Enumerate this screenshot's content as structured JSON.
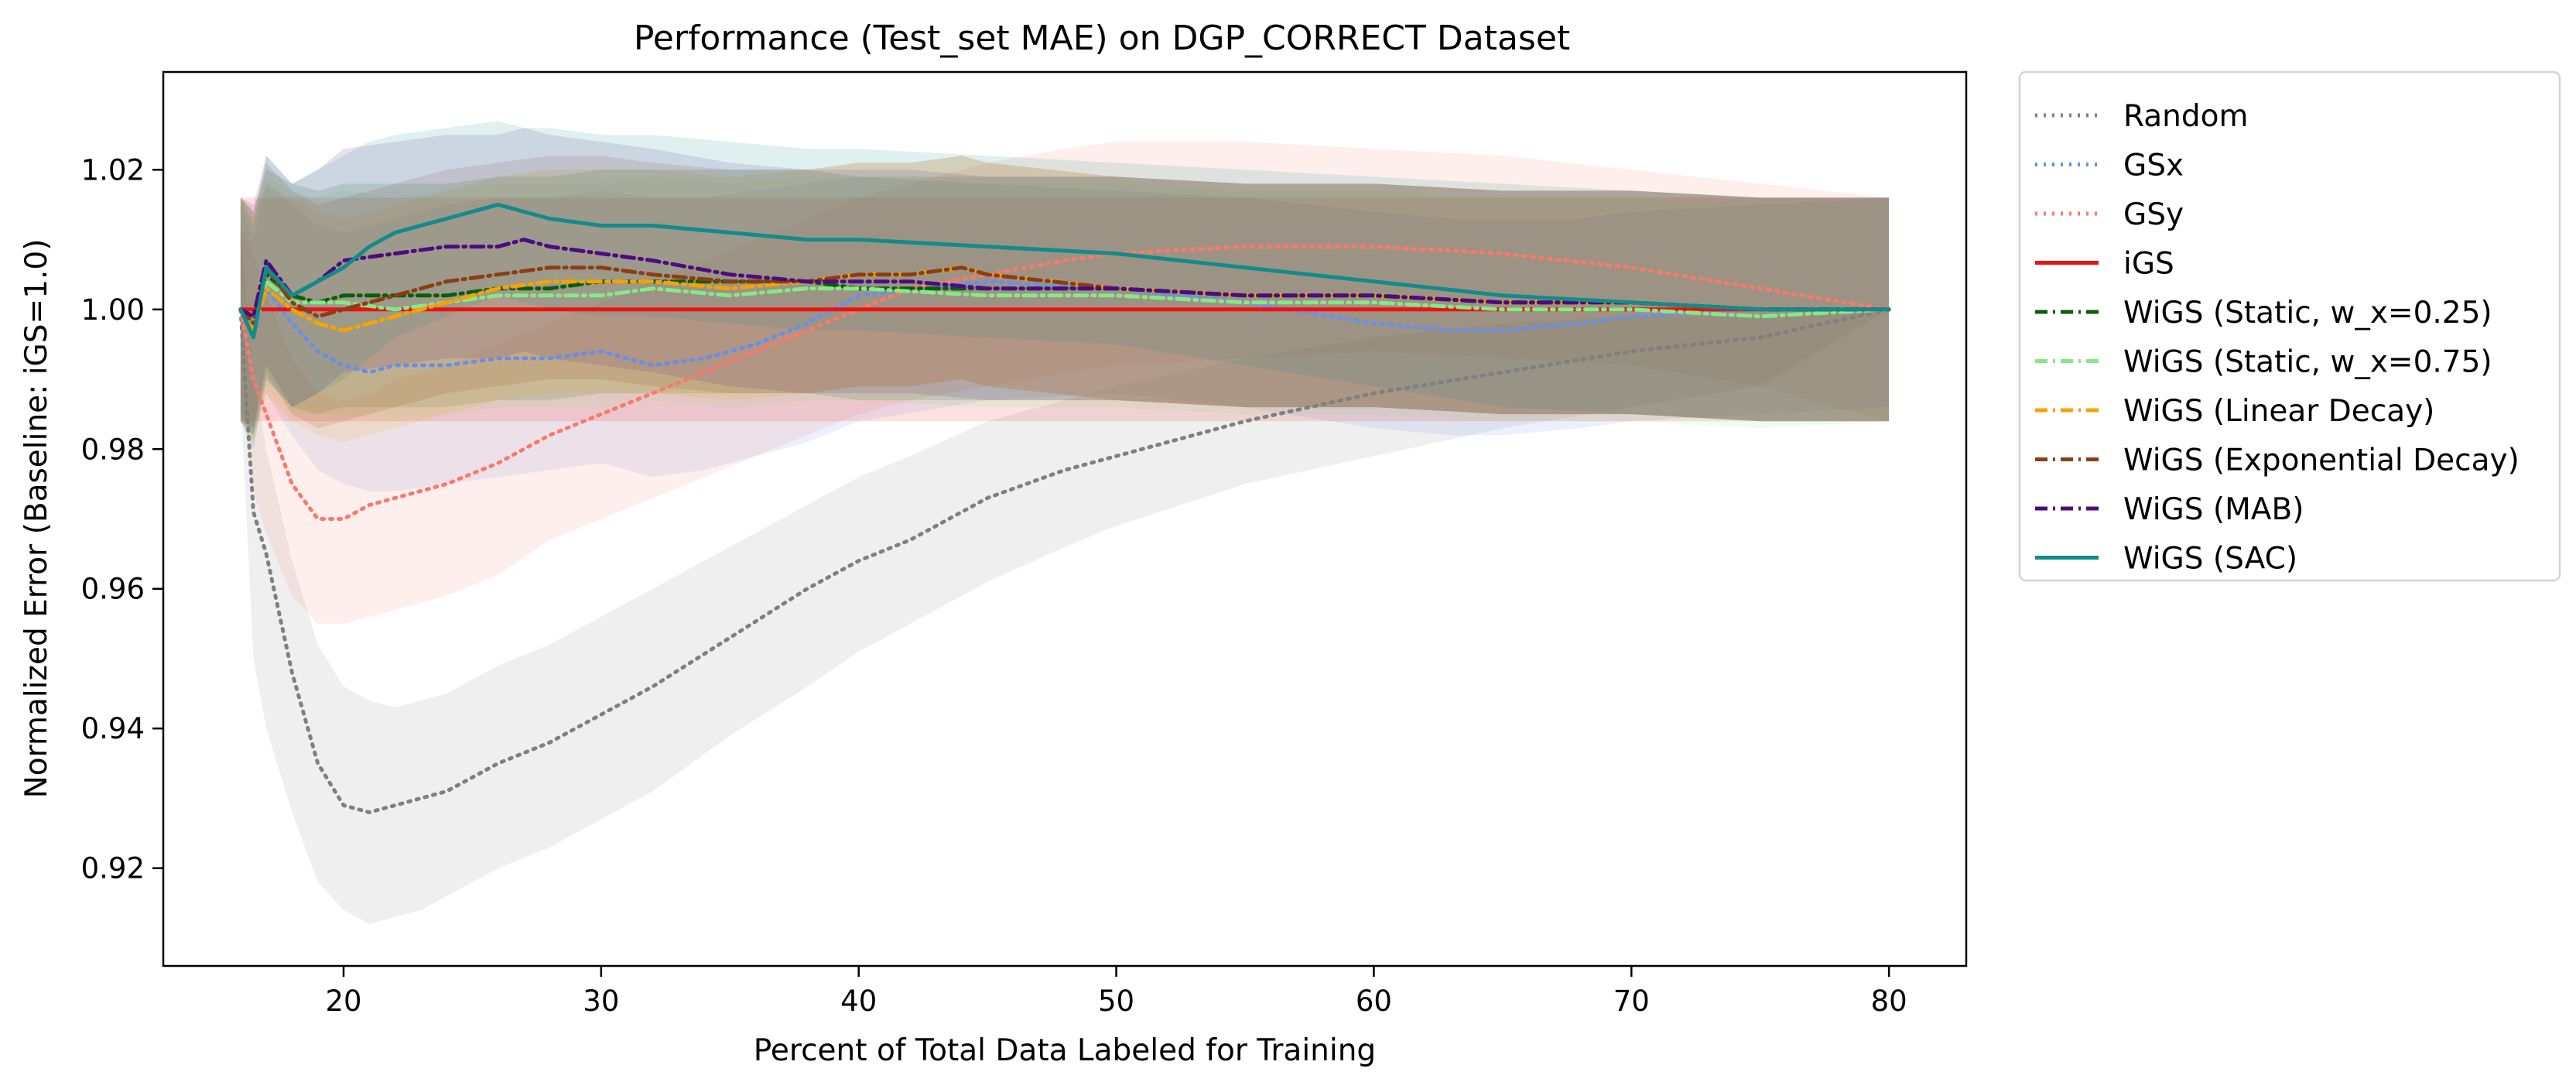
{
  "chart_data": {
    "type": "line",
    "title": "Performance (Test_set MAE) on DGP_CORRECT Dataset",
    "xlabel": "Percent of Total Data Labeled for Training",
    "ylabel": "Normalized Error (Baseline: iGS=1.0)",
    "xlim": [
      13,
      83
    ],
    "ylim": [
      0.906,
      1.034
    ],
    "xticks": [
      20,
      30,
      40,
      50,
      60,
      70,
      80
    ],
    "yticks": [
      0.92,
      0.94,
      0.96,
      0.98,
      1.0,
      1.02
    ],
    "ytick_labels": [
      "0.92",
      "0.94",
      "0.96",
      "0.98",
      "1.00",
      "1.02"
    ],
    "grid": false,
    "legend_position": "outside-right",
    "series": [
      {
        "name": "Random",
        "color": "#808080",
        "dash": "dotted",
        "x": [
          16,
          16.5,
          17,
          18,
          19,
          20,
          21,
          22,
          23,
          24,
          25,
          26,
          28,
          30,
          32,
          35,
          38,
          40,
          42,
          45,
          48,
          50,
          55,
          60,
          65,
          70,
          75,
          80
        ],
        "y": [
          1.0,
          0.971,
          0.965,
          0.948,
          0.935,
          0.929,
          0.928,
          0.929,
          0.93,
          0.931,
          0.933,
          0.935,
          0.938,
          0.942,
          0.946,
          0.953,
          0.96,
          0.964,
          0.967,
          0.973,
          0.977,
          0.979,
          0.984,
          0.988,
          0.991,
          0.994,
          0.996,
          1.0
        ],
        "band": [
          [
            1.012,
            0.99,
            0.98,
            0.964,
            0.952,
            0.946,
            0.944,
            0.943,
            0.944,
            0.945,
            0.947,
            0.949,
            0.952,
            0.956,
            0.96,
            0.966,
            0.972,
            0.976,
            0.979,
            0.984,
            0.987,
            0.989,
            0.993,
            0.996,
            0.998,
            0.999,
            0.999,
            1.0
          ],
          [
            0.988,
            0.95,
            0.94,
            0.928,
            0.918,
            0.914,
            0.912,
            0.913,
            0.914,
            0.916,
            0.918,
            0.92,
            0.923,
            0.927,
            0.931,
            0.939,
            0.946,
            0.951,
            0.955,
            0.961,
            0.966,
            0.969,
            0.975,
            0.979,
            0.983,
            0.986,
            0.989,
            1.0
          ]
        ]
      },
      {
        "name": "GSx",
        "color": "#6a8ee8",
        "dash": "dotted",
        "x": [
          16,
          16.5,
          17,
          18,
          19,
          20,
          21,
          22,
          24,
          26,
          28,
          30,
          32,
          34,
          36,
          38,
          40,
          45,
          50,
          55,
          60,
          63,
          65,
          68,
          70,
          75,
          80
        ],
        "y": [
          1.0,
          0.996,
          1.003,
          0.998,
          0.994,
          0.992,
          0.991,
          0.992,
          0.992,
          0.993,
          0.993,
          0.994,
          0.992,
          0.993,
          0.995,
          0.998,
          1.002,
          1.004,
          1.003,
          1.001,
          0.998,
          0.997,
          0.997,
          0.998,
          0.999,
          1.0,
          1.0
        ],
        "band": [
          [
            1.015,
            1.01,
            1.018,
            1.015,
            1.012,
            1.011,
            1.012,
            1.013,
            1.015,
            1.016,
            1.016,
            1.017,
            1.016,
            1.016,
            1.017,
            1.018,
            1.019,
            1.018,
            1.017,
            1.016,
            1.014,
            1.013,
            1.013,
            1.013,
            1.014,
            1.015,
            1.016
          ],
          [
            0.985,
            0.982,
            0.988,
            0.982,
            0.977,
            0.975,
            0.974,
            0.974,
            0.975,
            0.976,
            0.977,
            0.978,
            0.976,
            0.977,
            0.979,
            0.981,
            0.984,
            0.987,
            0.988,
            0.986,
            0.983,
            0.982,
            0.982,
            0.983,
            0.984,
            0.985,
            0.986
          ]
        ]
      },
      {
        "name": "GSy",
        "color": "#f87a6c",
        "dash": "dotted",
        "x": [
          16,
          16.5,
          17,
          18,
          19,
          20,
          21,
          22,
          23,
          24,
          26,
          28,
          30,
          32,
          34,
          36,
          38,
          40,
          42,
          45,
          48,
          50,
          55,
          60,
          65,
          70,
          75,
          80
        ],
        "y": [
          1.0,
          0.99,
          0.985,
          0.975,
          0.97,
          0.97,
          0.972,
          0.973,
          0.974,
          0.975,
          0.978,
          0.982,
          0.985,
          0.988,
          0.991,
          0.994,
          0.997,
          1.0,
          1.003,
          1.005,
          1.007,
          1.008,
          1.009,
          1.009,
          1.008,
          1.006,
          1.003,
          1.0
        ],
        "band": [
          [
            1.012,
            1.008,
            1.002,
            0.993,
            0.988,
            0.987,
            0.988,
            0.99,
            0.991,
            0.992,
            0.995,
            0.998,
            1.001,
            1.004,
            1.007,
            1.01,
            1.013,
            1.016,
            1.018,
            1.021,
            1.023,
            1.024,
            1.024,
            1.023,
            1.022,
            1.02,
            1.018,
            1.016
          ],
          [
            0.988,
            0.974,
            0.968,
            0.959,
            0.955,
            0.955,
            0.956,
            0.957,
            0.958,
            0.959,
            0.962,
            0.967,
            0.97,
            0.973,
            0.976,
            0.979,
            0.982,
            0.985,
            0.987,
            0.989,
            0.991,
            0.992,
            0.993,
            0.994,
            0.993,
            0.992,
            0.989,
            0.984
          ]
        ]
      },
      {
        "name": "iGS",
        "color": "#ee1111",
        "dash": "solid",
        "x": [
          16,
          80
        ],
        "y": [
          1.0,
          1.0
        ],
        "band": [
          [
            1.016,
            1.016
          ],
          [
            0.984,
            0.984
          ]
        ]
      },
      {
        "name": "WiGS (Static, w_x=0.25)",
        "color": "#0b5e0b",
        "dash": "dashdot",
        "x": [
          16,
          16.5,
          17,
          18,
          19,
          20,
          22,
          24,
          26,
          28,
          30,
          32,
          35,
          38,
          40,
          45,
          50,
          55,
          60,
          65,
          70,
          75,
          80
        ],
        "y": [
          1.0,
          0.998,
          1.005,
          1.002,
          1.001,
          1.002,
          1.002,
          1.002,
          1.003,
          1.003,
          1.004,
          1.004,
          1.004,
          1.004,
          1.003,
          1.003,
          1.003,
          1.002,
          1.002,
          1.001,
          1.001,
          1.0,
          1.0
        ],
        "band": [
          [
            1.016,
            1.014,
            1.02,
            1.018,
            1.017,
            1.018,
            1.018,
            1.018,
            1.019,
            1.019,
            1.02,
            1.02,
            1.02,
            1.02,
            1.019,
            1.019,
            1.019,
            1.018,
            1.018,
            1.017,
            1.017,
            1.016,
            1.016
          ],
          [
            0.984,
            0.982,
            0.99,
            0.986,
            0.985,
            0.986,
            0.986,
            0.986,
            0.987,
            0.987,
            0.988,
            0.988,
            0.988,
            0.988,
            0.987,
            0.987,
            0.987,
            0.986,
            0.986,
            0.985,
            0.985,
            0.984,
            0.984
          ]
        ]
      },
      {
        "name": "WiGS (Static, w_x=0.75)",
        "color": "#86e886",
        "dash": "dashdot",
        "x": [
          16,
          16.5,
          17,
          18,
          19,
          20,
          22,
          24,
          26,
          28,
          30,
          32,
          35,
          38,
          40,
          45,
          50,
          55,
          60,
          65,
          70,
          75,
          80
        ],
        "y": [
          1.0,
          0.997,
          1.004,
          1.001,
          1.001,
          1.001,
          1.0,
          1.001,
          1.002,
          1.002,
          1.002,
          1.003,
          1.002,
          1.003,
          1.003,
          1.002,
          1.002,
          1.001,
          1.001,
          1.0,
          1.0,
          0.999,
          1.0
        ],
        "band": [
          [
            1.016,
            1.013,
            1.019,
            1.017,
            1.016,
            1.017,
            1.016,
            1.017,
            1.018,
            1.018,
            1.018,
            1.019,
            1.018,
            1.019,
            1.019,
            1.018,
            1.018,
            1.017,
            1.017,
            1.016,
            1.016,
            1.015,
            1.016
          ],
          [
            0.984,
            0.981,
            0.989,
            0.985,
            0.985,
            0.985,
            0.984,
            0.985,
            0.986,
            0.986,
            0.986,
            0.987,
            0.986,
            0.987,
            0.987,
            0.986,
            0.986,
            0.985,
            0.985,
            0.984,
            0.984,
            0.983,
            0.984
          ]
        ]
      },
      {
        "name": "WiGS (Linear Decay)",
        "color": "#f5a300",
        "dash": "dashdot",
        "x": [
          16,
          16.5,
          17,
          18,
          19,
          20,
          22,
          24,
          26,
          28,
          30,
          32,
          35,
          38,
          40,
          42,
          44,
          45,
          50,
          55,
          60,
          65,
          70,
          75,
          80
        ],
        "y": [
          1.0,
          0.997,
          1.003,
          1.0,
          0.998,
          0.997,
          0.999,
          1.001,
          1.003,
          1.004,
          1.004,
          1.004,
          1.003,
          1.004,
          1.005,
          1.005,
          1.006,
          1.005,
          1.003,
          1.002,
          1.002,
          1.001,
          1.001,
          1.0,
          1.0
        ],
        "band": [
          [
            1.016,
            1.013,
            1.018,
            1.016,
            1.014,
            1.013,
            1.015,
            1.017,
            1.019,
            1.02,
            1.02,
            1.02,
            1.019,
            1.02,
            1.021,
            1.021,
            1.022,
            1.021,
            1.019,
            1.018,
            1.018,
            1.017,
            1.017,
            1.016,
            1.016
          ],
          [
            0.984,
            0.981,
            0.988,
            0.984,
            0.982,
            0.981,
            0.983,
            0.985,
            0.987,
            0.988,
            0.988,
            0.988,
            0.987,
            0.988,
            0.989,
            0.989,
            0.99,
            0.989,
            0.987,
            0.986,
            0.986,
            0.985,
            0.985,
            0.984,
            0.984
          ]
        ]
      },
      {
        "name": "WiGS (Exponential Decay)",
        "color": "#8b3e12",
        "dash": "dashdot",
        "x": [
          16,
          16.5,
          17,
          18,
          19,
          20,
          22,
          24,
          26,
          28,
          30,
          32,
          35,
          38,
          40,
          42,
          44,
          45,
          50,
          55,
          60,
          65,
          70,
          75,
          80
        ],
        "y": [
          1.0,
          0.998,
          1.006,
          1.001,
          0.999,
          1.0,
          1.002,
          1.004,
          1.005,
          1.006,
          1.006,
          1.005,
          1.004,
          1.004,
          1.005,
          1.005,
          1.006,
          1.005,
          1.003,
          1.002,
          1.002,
          1.001,
          1.001,
          1.0,
          1.0
        ],
        "band": [
          [
            1.016,
            1.014,
            1.021,
            1.017,
            1.015,
            1.016,
            1.018,
            1.02,
            1.021,
            1.022,
            1.022,
            1.021,
            1.02,
            1.02,
            1.021,
            1.021,
            1.022,
            1.021,
            1.019,
            1.018,
            1.018,
            1.017,
            1.017,
            1.016,
            1.016
          ],
          [
            0.984,
            0.982,
            0.991,
            0.985,
            0.983,
            0.984,
            0.986,
            0.988,
            0.989,
            0.99,
            0.99,
            0.989,
            0.988,
            0.988,
            0.989,
            0.989,
            0.99,
            0.989,
            0.987,
            0.986,
            0.986,
            0.985,
            0.985,
            0.984,
            0.984
          ]
        ]
      },
      {
        "name": "WiGS (MAB)",
        "color": "#4b0c80",
        "dash": "dashdot",
        "x": [
          16,
          16.5,
          17,
          18,
          19,
          20,
          22,
          24,
          26,
          27,
          28,
          30,
          32,
          35,
          38,
          40,
          42,
          45,
          50,
          55,
          60,
          65,
          70,
          75,
          80
        ],
        "y": [
          1.0,
          0.999,
          1.007,
          1.002,
          1.004,
          1.007,
          1.008,
          1.009,
          1.009,
          1.01,
          1.009,
          1.008,
          1.007,
          1.005,
          1.004,
          1.004,
          1.004,
          1.003,
          1.003,
          1.002,
          1.002,
          1.001,
          1.001,
          1.0,
          1.0
        ],
        "band": [
          [
            1.016,
            1.015,
            1.022,
            1.018,
            1.02,
            1.023,
            1.024,
            1.025,
            1.025,
            1.026,
            1.025,
            1.024,
            1.023,
            1.021,
            1.02,
            1.02,
            1.02,
            1.019,
            1.019,
            1.018,
            1.018,
            1.017,
            1.017,
            1.016,
            1.016
          ],
          [
            0.984,
            0.983,
            0.992,
            0.986,
            0.988,
            0.991,
            0.992,
            0.993,
            0.993,
            0.994,
            0.993,
            0.992,
            0.991,
            0.989,
            0.988,
            0.988,
            0.988,
            0.987,
            0.987,
            0.986,
            0.986,
            0.985,
            0.985,
            0.984,
            0.984
          ]
        ]
      },
      {
        "name": "WiGS (SAC)",
        "color": "#138b8b",
        "dash": "solid",
        "x": [
          16,
          16.5,
          17,
          18,
          19,
          20,
          21,
          22,
          24,
          26,
          27,
          28,
          30,
          32,
          35,
          38,
          40,
          45,
          50,
          55,
          60,
          65,
          70,
          75,
          80
        ],
        "y": [
          1.0,
          0.996,
          1.006,
          1.002,
          1.004,
          1.006,
          1.009,
          1.011,
          1.013,
          1.015,
          1.014,
          1.013,
          1.012,
          1.012,
          1.011,
          1.01,
          1.01,
          1.009,
          1.008,
          1.006,
          1.004,
          1.002,
          1.001,
          1.0,
          1.0
        ],
        "band": [
          [
            1.016,
            1.012,
            1.022,
            1.018,
            1.02,
            1.022,
            1.024,
            1.025,
            1.026,
            1.027,
            1.026,
            1.026,
            1.025,
            1.025,
            1.024,
            1.023,
            1.023,
            1.022,
            1.021,
            1.02,
            1.019,
            1.018,
            1.017,
            1.016,
            1.016
          ],
          [
            0.984,
            0.98,
            0.99,
            0.986,
            0.988,
            0.99,
            0.993,
            0.996,
            0.999,
            1.002,
            1.001,
            1.0,
            0.999,
            0.999,
            0.998,
            0.997,
            0.997,
            0.996,
            0.995,
            0.992,
            0.989,
            0.986,
            0.985,
            0.984,
            0.984
          ]
        ]
      }
    ]
  }
}
